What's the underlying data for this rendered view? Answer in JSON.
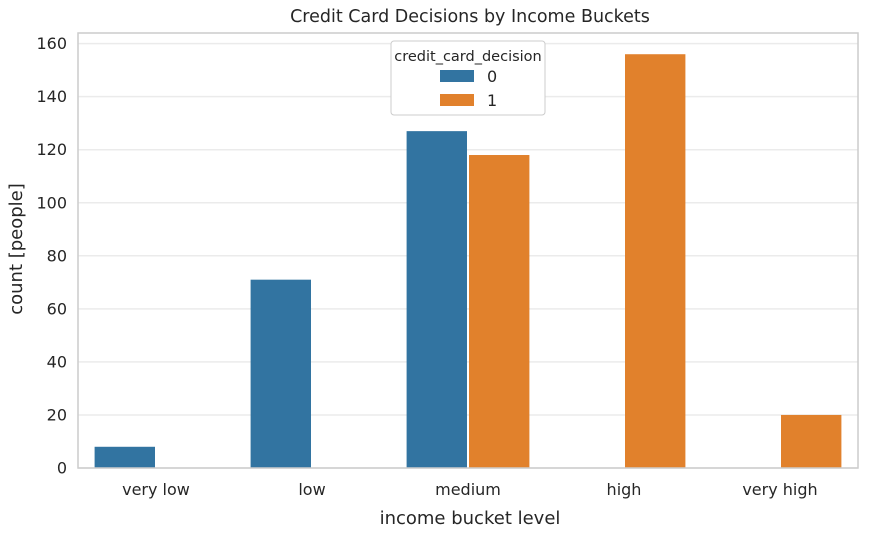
{
  "chart_data": {
    "type": "bar",
    "title": "Credit Card Decisions by Income Buckets",
    "xlabel": "income bucket level",
    "ylabel": "count [people]",
    "categories": [
      "very low",
      "low",
      "medium",
      "high",
      "very high"
    ],
    "series": [
      {
        "name": "0",
        "values": [
          8,
          71,
          127,
          0,
          0
        ],
        "color": "#3274a1"
      },
      {
        "name": "1",
        "values": [
          0,
          0,
          118,
          156,
          20
        ],
        "color": "#e1812c"
      }
    ],
    "yticks": [
      0,
      20,
      40,
      60,
      80,
      100,
      120,
      140,
      160
    ],
    "ylim": [
      0,
      164
    ],
    "grid": true,
    "legend": {
      "title": "credit_card_decision",
      "placement": "upper-center"
    }
  }
}
